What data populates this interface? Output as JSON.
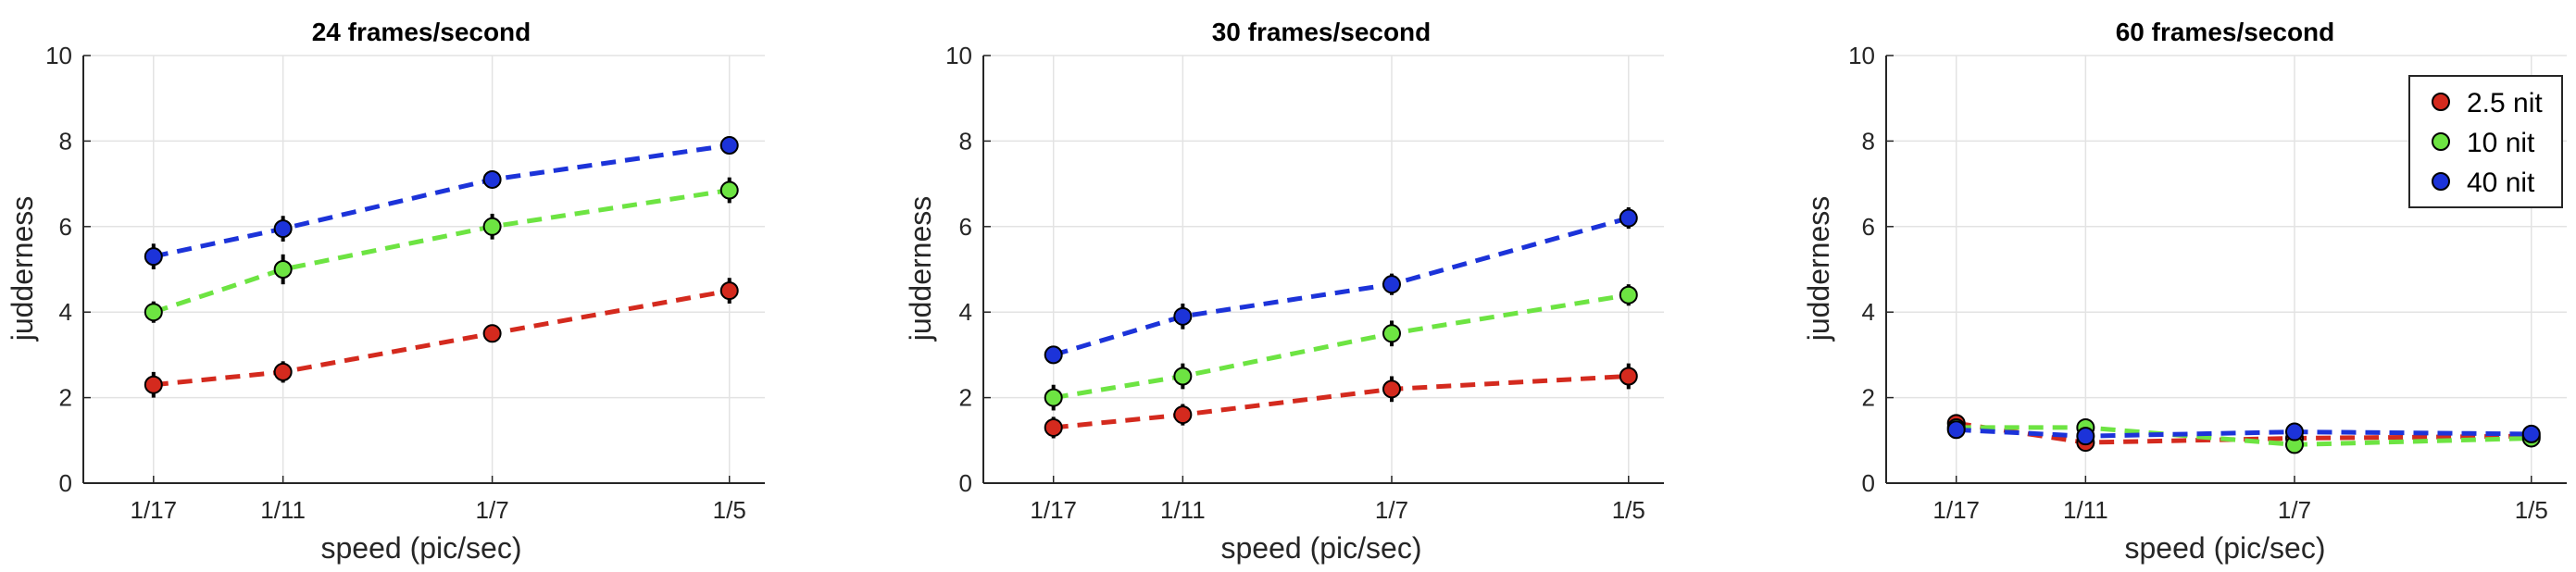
{
  "chart_data": [
    {
      "type": "line",
      "title": "24 frames/second",
      "xlabel": "speed (pic/sec)",
      "ylabel": "judderness",
      "x": [
        "1/17",
        "1/11",
        "1/7",
        "1/5"
      ],
      "ylim": [
        0,
        10
      ],
      "yticks": [
        "0",
        "2",
        "4",
        "6",
        "8",
        "10"
      ],
      "grid": true,
      "series": [
        {
          "name": "2.5 nit",
          "color": "#d42a1e",
          "values": [
            2.3,
            2.6,
            3.5,
            4.5
          ],
          "errors": [
            0.3,
            0.25,
            0.15,
            0.3
          ]
        },
        {
          "name": "10 nit",
          "color": "#6de442",
          "values": [
            4.0,
            5.0,
            6.0,
            6.85
          ],
          "errors": [
            0.25,
            0.35,
            0.3,
            0.3
          ]
        },
        {
          "name": "40 nit",
          "color": "#1c33d9",
          "values": [
            5.3,
            5.95,
            7.1,
            7.9
          ],
          "errors": [
            0.3,
            0.3,
            0.2,
            0.2
          ]
        }
      ]
    },
    {
      "type": "line",
      "title": "30 frames/second",
      "xlabel": "speed (pic/sec)",
      "ylabel": "judderness",
      "x": [
        "1/17",
        "1/11",
        "1/7",
        "1/5"
      ],
      "ylim": [
        0,
        10
      ],
      "yticks": [
        "0",
        "2",
        "4",
        "6",
        "8",
        "10"
      ],
      "grid": true,
      "series": [
        {
          "name": "2.5 nit",
          "color": "#d42a1e",
          "values": [
            1.3,
            1.6,
            2.2,
            2.5
          ],
          "errors": [
            0.25,
            0.25,
            0.3,
            0.3
          ]
        },
        {
          "name": "10 nit",
          "color": "#6de442",
          "values": [
            2.0,
            2.5,
            3.5,
            4.4
          ],
          "errors": [
            0.3,
            0.3,
            0.3,
            0.25
          ]
        },
        {
          "name": "40 nit",
          "color": "#1c33d9",
          "values": [
            3.0,
            3.9,
            4.65,
            6.2
          ],
          "errors": [
            0.2,
            0.3,
            0.25,
            0.25
          ]
        }
      ]
    },
    {
      "type": "line",
      "title": "60 frames/second",
      "xlabel": "speed (pic/sec)",
      "ylabel": "judderness",
      "x": [
        "1/17",
        "1/11",
        "1/7",
        "1/5"
      ],
      "ylim": [
        0,
        10
      ],
      "yticks": [
        "0",
        "2",
        "4",
        "6",
        "8",
        "10"
      ],
      "grid": true,
      "legend": {
        "placement": "top-right",
        "entries": [
          "2.5 nit",
          "10 nit",
          "40 nit"
        ]
      },
      "series": [
        {
          "name": "2.5 nit",
          "color": "#d42a1e",
          "values": [
            1.4,
            0.95,
            1.05,
            1.1
          ],
          "errors": [
            0.2,
            0.15,
            0.2,
            0.2
          ]
        },
        {
          "name": "10 nit",
          "color": "#6de442",
          "values": [
            1.3,
            1.3,
            0.9,
            1.05
          ],
          "errors": [
            0.2,
            0.2,
            0.2,
            0.15
          ]
        },
        {
          "name": "40 nit",
          "color": "#1c33d9",
          "values": [
            1.25,
            1.1,
            1.2,
            1.15
          ],
          "errors": [
            0.2,
            0.2,
            0.2,
            0.2
          ]
        }
      ]
    }
  ]
}
